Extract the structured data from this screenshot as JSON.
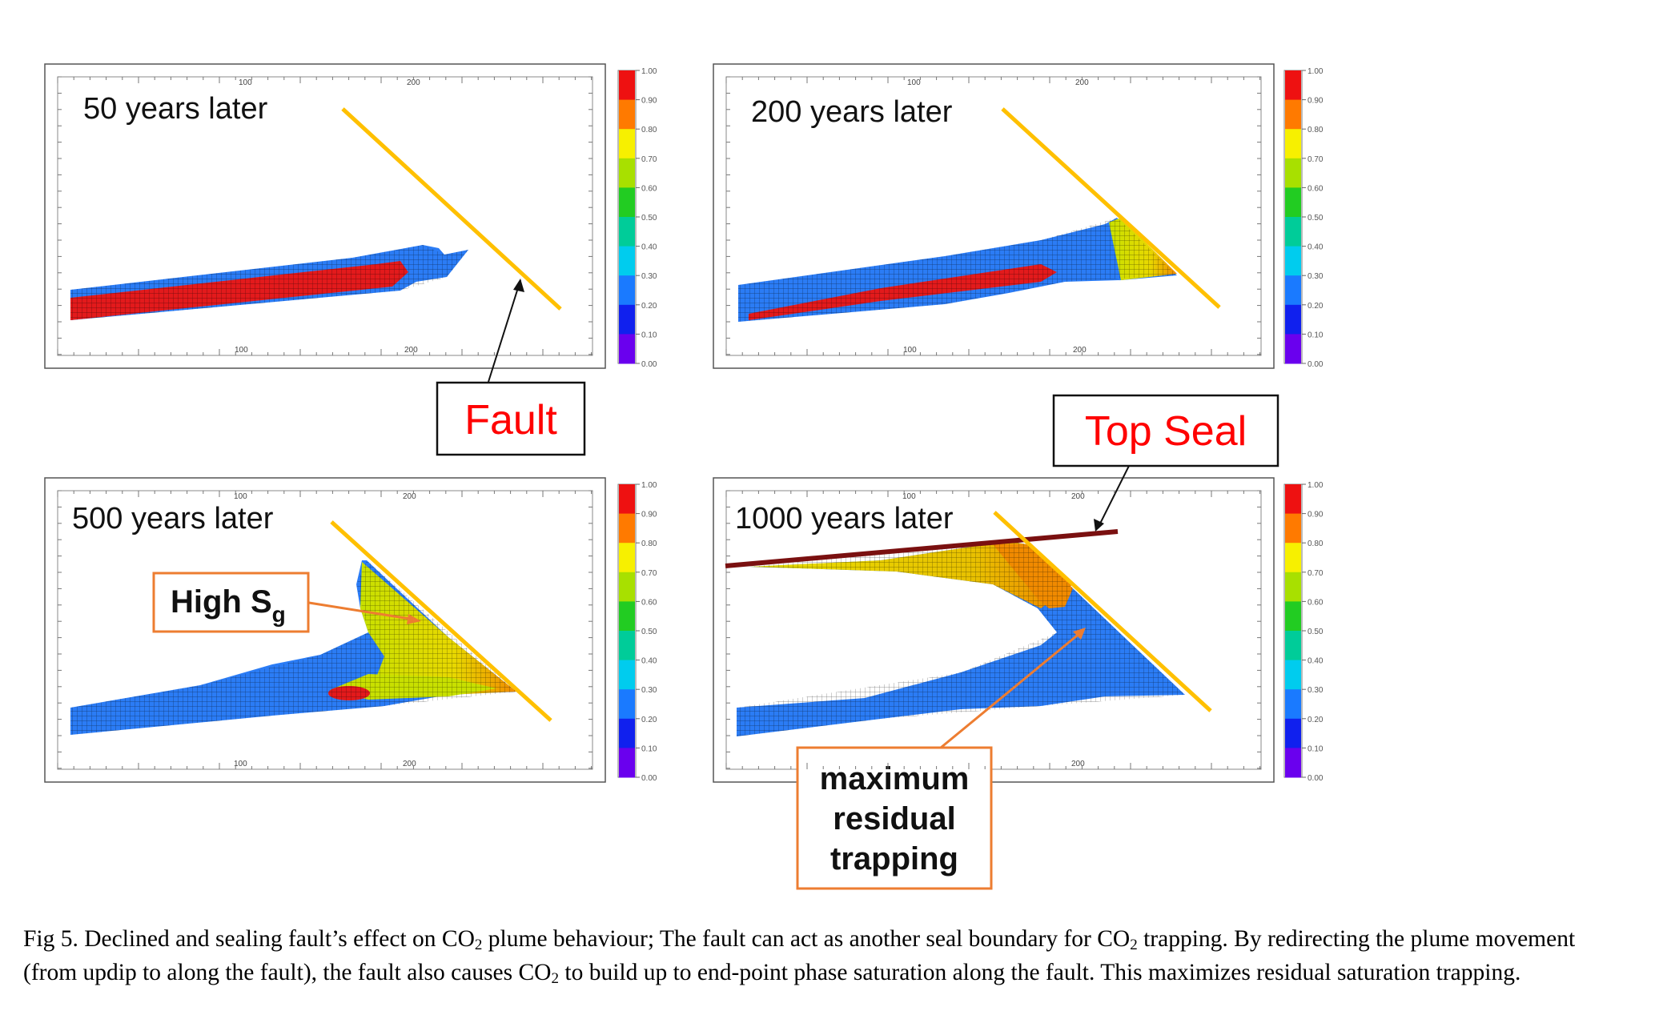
{
  "panels": [
    {
      "label": "50 years later",
      "top_ticks": [
        "100",
        "200"
      ],
      "bottom_ticks": [
        "100",
        "200"
      ]
    },
    {
      "label": "200 years later",
      "top_ticks": [
        "100",
        "200"
      ],
      "bottom_ticks": [
        "100",
        "200"
      ]
    },
    {
      "label": "500 years later",
      "top_ticks": [
        "100",
        "200"
      ],
      "bottom_ticks": [
        "100",
        "200"
      ]
    },
    {
      "label": "1000 years later",
      "top_ticks": [
        "100",
        "200"
      ],
      "bottom_ticks": [
        "200"
      ]
    }
  ],
  "colorbar": {
    "ticks": [
      "1.00",
      "0.90",
      "0.80",
      "0.70",
      "0.60",
      "0.50",
      "0.40",
      "0.30",
      "0.20",
      "0.10",
      "0.00"
    ],
    "colors": [
      "#ee1111",
      "#ff7a00",
      "#f7f000",
      "#a8e000",
      "#22cc22",
      "#00cc99",
      "#00ccee",
      "#1a7aff",
      "#1020ee",
      "#6a00ee"
    ]
  },
  "colors": {
    "fault": "#ffc000",
    "seal": "#7a1010",
    "callout_red": "#ff0000",
    "callout_orange": "#ed7d31",
    "plume_red": "#e31a1c",
    "plume_blue": "#1f77f0"
  },
  "annotations": {
    "fault": "Fault",
    "top_seal": "Top Seal",
    "high_sg_main": "High S",
    "high_sg_sub": "g",
    "trapping": [
      "maximum",
      "residual",
      "trapping"
    ]
  },
  "caption": {
    "p1": "Fig 5. Declined and sealing fault’s effect on CO",
    "s1": "2",
    "p2": " plume behaviour; The fault can act as another seal boundary for CO",
    "s2": "2",
    "p3": " trapping. By redirecting the plume movement (from updip to along the fault), the fault also causes CO",
    "s3": "2",
    "p4": " to build up to end-point phase saturation along the fault. This maximizes residual saturation trapping."
  }
}
